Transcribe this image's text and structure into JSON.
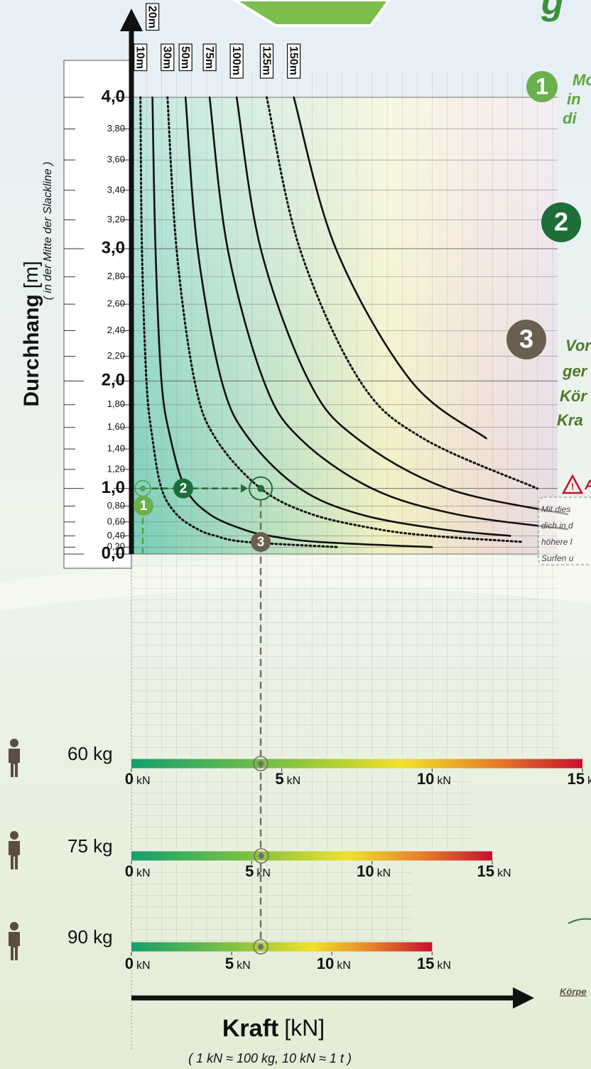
{
  "header": {
    "title_fragment": "g"
  },
  "chart_data": {
    "type": "line",
    "y_label": "Durchhang",
    "y_unit": "[m]",
    "y_note": "( in der Mitte der Slackline )",
    "x_label": "Kraft",
    "x_unit": "[kN]",
    "x_note": "( 1 kN ≈ 100 kg, 10 kN ≈ 1 t )",
    "xlim": [
      0,
      15
    ],
    "ylim": [
      0,
      4.0
    ],
    "yscale": {
      "type": "power",
      "exponent": 1.4
    },
    "yticks": [
      {
        "value": 0,
        "label": "0,0"
      },
      {
        "value": 0.2,
        "label": "0,20"
      },
      {
        "value": 0.4,
        "label": "0,40"
      },
      {
        "value": 0.6,
        "label": "0,60"
      },
      {
        "value": 0.8,
        "label": "0,80"
      },
      {
        "value": 1,
        "label": "1,0"
      },
      {
        "value": 1.2,
        "label": "1,20"
      },
      {
        "value": 1.4,
        "label": "1,40"
      },
      {
        "value": 1.6,
        "label": "1,60"
      },
      {
        "value": 1.8,
        "label": "1,80"
      },
      {
        "value": 2,
        "label": "2,0"
      },
      {
        "value": 2.2,
        "label": "2,20"
      },
      {
        "value": 2.4,
        "label": "2,40"
      },
      {
        "value": 2.6,
        "label": "2,60"
      },
      {
        "value": 2.8,
        "label": "2,80"
      },
      {
        "value": 3,
        "label": "3,0"
      },
      {
        "value": 3.2,
        "label": "3,20"
      },
      {
        "value": 3.4,
        "label": "3,40"
      },
      {
        "value": 3.6,
        "label": "3,60"
      },
      {
        "value": 3.8,
        "label": "3,80"
      },
      {
        "value": 4,
        "label": "4,0"
      }
    ],
    "series": [
      {
        "name": "10m",
        "color": "#111111",
        "dashed": true,
        "x": [
          0.3,
          0.35,
          0.5,
          0.7,
          1.0,
          1.5,
          2.2,
          2.8,
          3.8,
          6.9
        ],
        "values": [
          4.0,
          3.0,
          2.0,
          1.5,
          1.0,
          0.7,
          0.5,
          0.4,
          0.3,
          0.2
        ]
      },
      {
        "name": "20m",
        "color": "#111111",
        "dashed": false,
        "x": [
          0.7,
          0.8,
          1.0,
          1.3,
          1.8,
          2.6,
          3.7,
          4.6,
          6.2,
          10.0
        ],
        "values": [
          4.0,
          3.0,
          2.0,
          1.5,
          1.0,
          0.7,
          0.5,
          0.4,
          0.3,
          0.2
        ]
      },
      {
        "name": "30m",
        "color": "#111111",
        "dashed": true,
        "x": [
          1.2,
          1.5,
          2.1,
          2.8,
          4.3,
          6.0,
          8.2,
          10.0,
          13.0
        ],
        "values": [
          4.0,
          3.0,
          2.0,
          1.5,
          1.0,
          0.7,
          0.5,
          0.4,
          0.3
        ]
      },
      {
        "name": "50m",
        "color": "#111111",
        "dashed": false,
        "x": [
          1.8,
          2.2,
          3.0,
          3.9,
          5.6,
          7.6,
          10.3,
          12.6
        ],
        "values": [
          4.0,
          3.0,
          2.0,
          1.5,
          1.0,
          0.7,
          0.5,
          0.4
        ]
      },
      {
        "name": "75m",
        "color": "#111111",
        "dashed": false,
        "x": [
          2.6,
          3.2,
          4.4,
          5.6,
          8.0,
          10.8,
          14.5
        ],
        "values": [
          4.0,
          3.0,
          2.0,
          1.5,
          1.0,
          0.7,
          0.5
        ]
      },
      {
        "name": "100m",
        "color": "#111111",
        "dashed": false,
        "x": [
          3.5,
          4.3,
          5.9,
          7.5,
          10.5,
          14.5
        ],
        "values": [
          4.0,
          3.0,
          2.0,
          1.5,
          1.0,
          0.7
        ]
      },
      {
        "name": "125m",
        "color": "#111111",
        "dashed": true,
        "x": [
          4.5,
          5.6,
          7.6,
          9.7,
          13.5
        ],
        "values": [
          4.0,
          3.0,
          2.0,
          1.5,
          1.0
        ]
      },
      {
        "name": "150m",
        "color": "#111111",
        "dashed": false,
        "x": [
          5.4,
          6.8,
          9.3,
          11.8
        ],
        "values": [
          4.0,
          3.0,
          2.0,
          1.5
        ]
      }
    ],
    "weight_scales": [
      {
        "label": "60 kg",
        "xlim": [
          0,
          15
        ],
        "xticks": [
          0,
          5,
          10,
          15
        ],
        "unit": "kN"
      },
      {
        "label": "75 kg",
        "xlim": [
          0,
          18.75
        ],
        "xticks": [
          0,
          5,
          10,
          15
        ],
        "unit": "kN"
      },
      {
        "label": "90 kg",
        "xlim": [
          0,
          22.5
        ],
        "xticks": [
          0,
          5,
          10,
          15
        ],
        "unit": "kN"
      }
    ],
    "example": {
      "sag": 1.0,
      "forces": [
        4.3,
        5.4,
        6.45
      ],
      "steps": [
        "1",
        "2",
        "3"
      ]
    }
  },
  "side_texts": {
    "step1": [
      "Mo",
      "in",
      "di"
    ],
    "step3": [
      "Vor",
      "ger",
      "Kör",
      "Kra"
    ],
    "warning": "A",
    "note": [
      "Mit dies",
      "dich in d",
      "höhere l",
      "Surfen u"
    ],
    "bottom": "Körpe"
  }
}
